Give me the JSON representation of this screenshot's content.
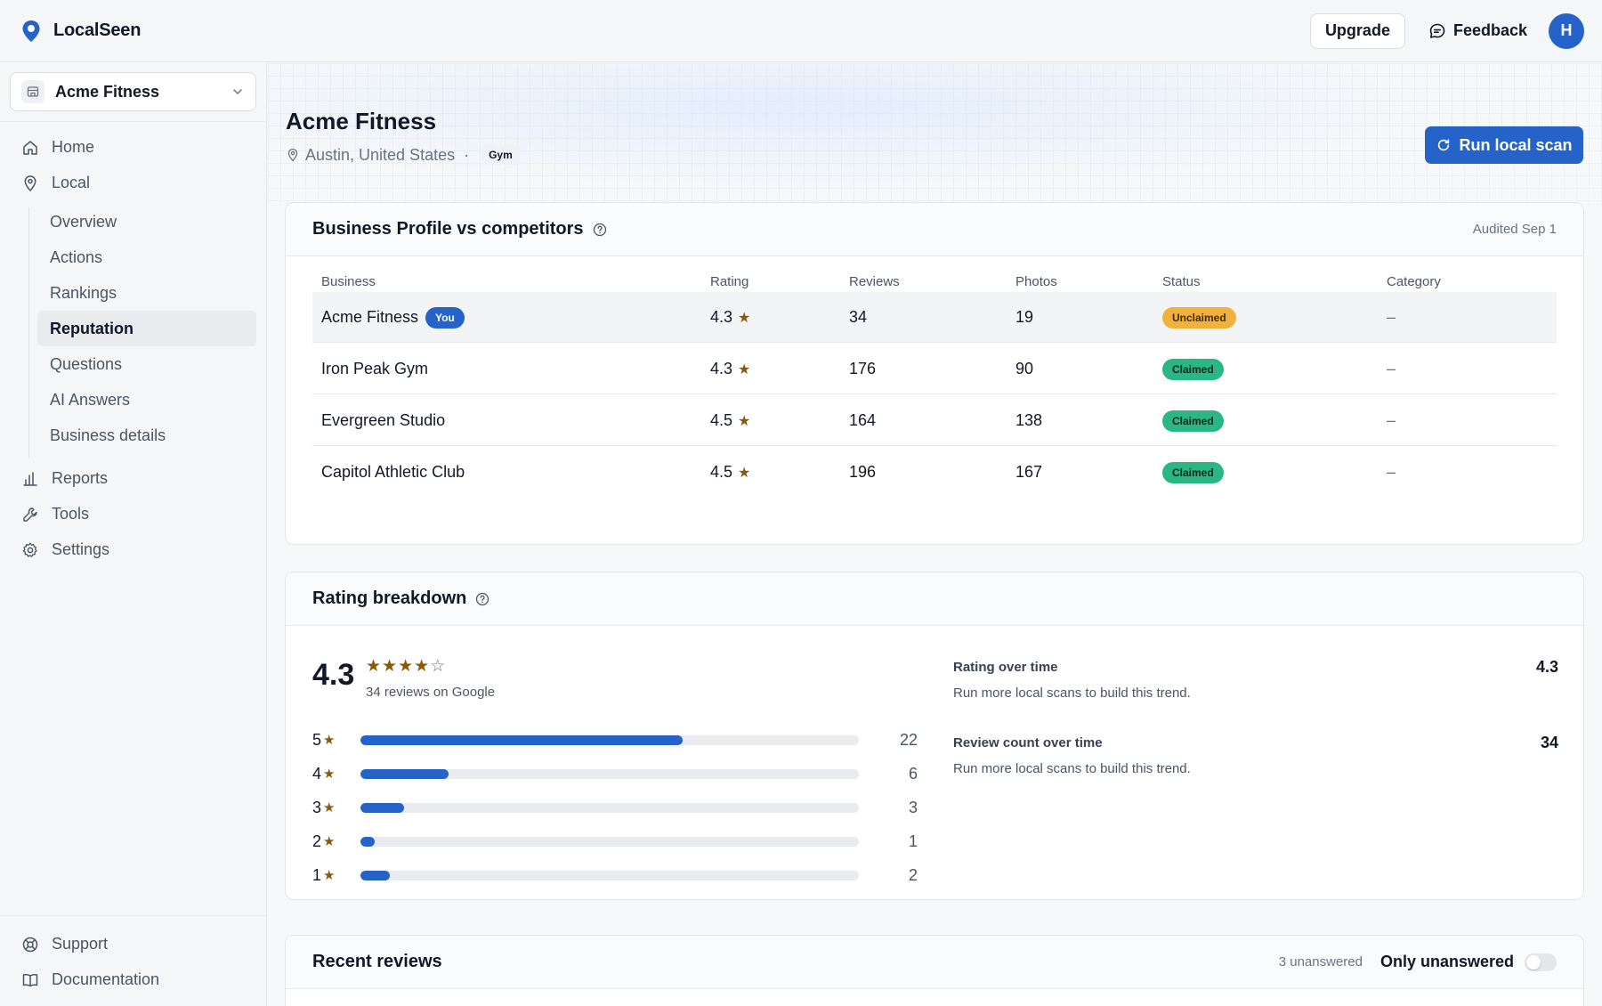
{
  "app": {
    "name": "LocalSeen"
  },
  "header": {
    "upgrade_label": "Upgrade",
    "feedback_label": "Feedback",
    "avatar_initial": "H",
    "accent": "#2563c9"
  },
  "sidebar": {
    "workspace": "Acme Fitness",
    "nav": [
      {
        "label": "Home",
        "icon": "home-icon"
      },
      {
        "label": "Local",
        "icon": "map-pin-icon"
      }
    ],
    "local_sub": [
      "Overview",
      "Actions",
      "Rankings",
      "Reputation",
      "Questions",
      "AI Answers",
      "Business details"
    ],
    "active_sub": "Reputation",
    "nav2": [
      {
        "label": "Reports",
        "icon": "bar-chart-icon"
      },
      {
        "label": "Tools",
        "icon": "wrench-icon"
      },
      {
        "label": "Settings",
        "icon": "gear-icon"
      }
    ],
    "footer": [
      {
        "label": "Support",
        "icon": "lifebuoy-icon"
      },
      {
        "label": "Documentation",
        "icon": "book-icon"
      }
    ]
  },
  "page": {
    "title": "Acme Fitness",
    "location": "Austin, United States",
    "separator": "·",
    "category_tag": "Gym",
    "scan_button": "Run local scan"
  },
  "profile_card": {
    "title": "Business Profile vs competitors",
    "audited": "Audited Sep 1",
    "columns": [
      "Business",
      "Rating",
      "Reviews",
      "Photos",
      "Status",
      "Category"
    ],
    "you_badge": "You",
    "rows": [
      {
        "business": "Acme Fitness",
        "rating": "4.3",
        "reviews": "34",
        "photos": "19",
        "status": "Unclaimed",
        "category": "–"
      },
      {
        "business": "Iron Peak Gym",
        "rating": "4.3",
        "reviews": "176",
        "photos": "90",
        "status": "Claimed",
        "category": "–"
      },
      {
        "business": "Evergreen Studio",
        "rating": "4.5",
        "reviews": "164",
        "photos": "138",
        "status": "Claimed",
        "category": "–"
      },
      {
        "business": "Capitol Athletic Club",
        "rating": "4.5",
        "reviews": "196",
        "photos": "167",
        "status": "Claimed",
        "category": "–"
      }
    ]
  },
  "rating_card": {
    "title": "Rating breakdown",
    "rating": "4.3",
    "stars_filled": 4,
    "reviews_text": "34 reviews on Google",
    "distribution": [
      {
        "stars": "5",
        "count": 22,
        "count_label": "22"
      },
      {
        "stars": "4",
        "count": 6,
        "count_label": "6"
      },
      {
        "stars": "3",
        "count": 3,
        "count_label": "3"
      },
      {
        "stars": "2",
        "count": 1,
        "count_label": "1"
      },
      {
        "stars": "1",
        "count": 2,
        "count_label": "2"
      }
    ],
    "trends": [
      {
        "title": "Rating over time",
        "value": "4.3",
        "note": "Run more local scans to build this trend."
      },
      {
        "title": "Review count over time",
        "value": "34",
        "note": "Run more local scans to build this trend."
      }
    ]
  },
  "reviews_card": {
    "title": "Recent reviews",
    "unanswered": "3 unanswered",
    "toggle_label": "Only unanswered",
    "toggle_on": false
  }
}
